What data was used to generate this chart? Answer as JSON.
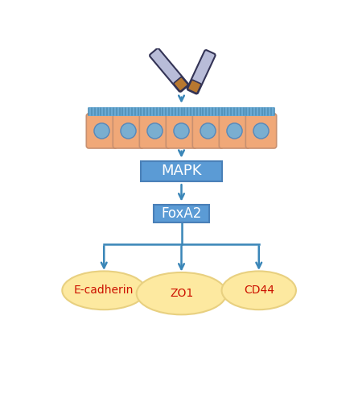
{
  "bg_color": "#ffffff",
  "arrow_color": "#3a86b8",
  "cell_bg": "#f0a878",
  "cell_nucleus_fill": "#7aaed0",
  "cell_nucleus_edge": "#5588bb",
  "cell_border": "#c89070",
  "cilia_color": "#6aaad4",
  "cilia_stripe_color": "#5090b8",
  "mapk_box_color": "#5b9bd5",
  "mapk_box_edge": "#4a80b8",
  "mapk_text": "MAPK",
  "foxa2_text": "FoxA2",
  "foxa2_box_color": "#5b9bd5",
  "foxa2_box_edge": "#4a80b8",
  "ellipse_fill": "#fde9a0",
  "ellipse_edge": "#e8d080",
  "label_color": "#cc1100",
  "labels": [
    "E-cadherin",
    "ZO1",
    "CD44"
  ],
  "n_cells": 7,
  "cig_body_color": "#b8bcd8",
  "cig_dark_edge": "#333355",
  "cig_tip_color": "#b87830",
  "fig_width": 4.4,
  "fig_height": 5.0,
  "dpi": 100
}
